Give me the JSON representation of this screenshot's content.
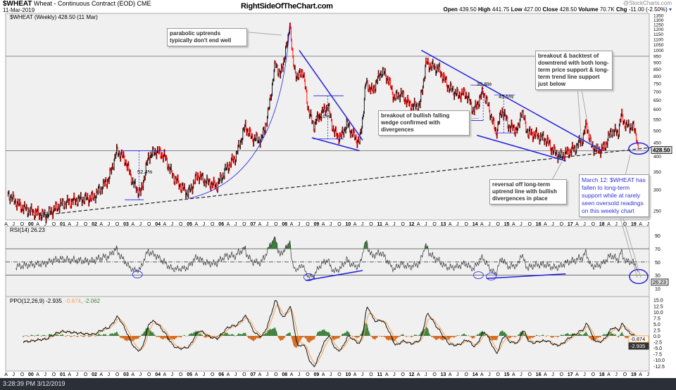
{
  "header": {
    "symbol": "$WHEAT",
    "name": "Wheat - Continuous Contract (EOD) CME",
    "date": "11-Mar-2019",
    "site": "RightSideOfTheChart.com",
    "credit": "@StockCharts.com",
    "open_label": "Open",
    "open": "439.50",
    "high_label": "High",
    "high": "441.75",
    "low_label": "Low",
    "low": "427.00",
    "close_label": "Close",
    "close": "428.50",
    "volume_label": "Volume",
    "volume": "70.7K",
    "chg_label": "Chg",
    "chg": "-11.00 (-2.50%)"
  },
  "status_bar": {
    "timestamp": "3:28:39 PM 3/12/2019"
  },
  "colors": {
    "up": "#000000",
    "down": "#ff0000",
    "annotation": "#2020e0",
    "signal": "#f5a04a",
    "hist_pos": "#3d7f3d",
    "hist_neg": "#d2691e",
    "panel_bg": "#f0f0f0",
    "status_bg": "#2b3038"
  },
  "annotations": {
    "parabolic": "parabolic uptrends typically don't end well",
    "wedge": "breakout of bullish falling wedge confirmed with divergences",
    "backtest": "breakout & backtest of downtrend with both long-term price support & long-term trend line support just below",
    "reversal": "reversal off long-term uptrend line with bullish divergences in place",
    "march12": "March 12: $WHEAT has fallen to long-term support while at rarely seen oversold readings on this weekly chart",
    "pct": [
      "52.4%",
      "45.0%",
      "35.8%",
      "45.5%"
    ]
  },
  "chart_data": [
    {
      "type": "line",
      "panel": "price",
      "title": "$WHEAT (Weekly) 428.50 (11 Mar)",
      "scale": "log",
      "ylim": [
        240,
        1360
      ],
      "yticks": [
        1350,
        1300,
        1250,
        1200,
        1150,
        1100,
        1050,
        1000,
        950,
        900,
        850,
        800,
        750,
        700,
        650,
        600,
        550,
        500,
        450,
        400,
        350,
        300,
        250
      ],
      "last_value_tag": "428.50",
      "horizontal_lines": [
        950,
        420
      ],
      "x": [
        1999.3,
        1999.7,
        2000.0,
        2000.5,
        2001.0,
        2001.5,
        2002.0,
        2002.5,
        2002.75,
        2003.0,
        2003.3,
        2003.5,
        2003.75,
        2004.0,
        2004.25,
        2004.5,
        2004.75,
        2005.0,
        2005.3,
        2005.6,
        2005.9,
        2006.2,
        2006.5,
        2006.8,
        2007.0,
        2007.3,
        2007.5,
        2007.75,
        2007.9,
        2008.15,
        2008.2,
        2008.3,
        2008.45,
        2008.6,
        2008.8,
        2008.95,
        2009.1,
        2009.4,
        2009.6,
        2009.8,
        2010.0,
        2010.2,
        2010.4,
        2010.5,
        2010.6,
        2010.8,
        2011.1,
        2011.3,
        2011.5,
        2011.7,
        2012.0,
        2012.3,
        2012.5,
        2012.6,
        2012.9,
        2013.2,
        2013.5,
        2013.75,
        2014.0,
        2014.3,
        2014.45,
        2014.7,
        2014.9,
        2015.1,
        2015.4,
        2015.5,
        2015.7,
        2016.0,
        2016.3,
        2016.5,
        2016.7,
        2016.9,
        2017.2,
        2017.45,
        2017.55,
        2017.7,
        2017.9,
        2018.1,
        2018.35,
        2018.55,
        2018.65,
        2018.8,
        2019.0,
        2019.1,
        2019.19
      ],
      "values": [
        290,
        260,
        250,
        240,
        265,
        275,
        280,
        330,
        420,
        390,
        310,
        290,
        400,
        420,
        400,
        340,
        310,
        290,
        340,
        320,
        310,
        360,
        400,
        520,
        470,
        460,
        560,
        900,
        800,
        1100,
        1300,
        900,
        780,
        850,
        590,
        520,
        560,
        620,
        490,
        470,
        530,
        480,
        450,
        560,
        760,
        700,
        840,
        780,
        660,
        690,
        620,
        620,
        900,
        880,
        850,
        730,
        680,
        690,
        590,
        700,
        620,
        490,
        600,
        520,
        500,
        600,
        490,
        480,
        460,
        420,
        400,
        410,
        430,
        470,
        530,
        440,
        420,
        430,
        500,
        490,
        570,
        520,
        520,
        490,
        428.5
      ]
    },
    {
      "type": "line",
      "panel": "rsi",
      "title": "RSI(14) 26.23",
      "ylim": [
        0,
        100
      ],
      "yticks": [
        90,
        70,
        50,
        30,
        10
      ],
      "reference_lines": [
        70,
        50,
        30
      ],
      "last_value_tag": "26.23"
    },
    {
      "type": "line",
      "panel": "ppo",
      "title": "PPO(12,26,9) -2.935",
      "signal_label": ", -0.874",
      "hist_label": ", -2.062",
      "ylim": [
        -14,
        16.5
      ],
      "yticks": [
        15.0,
        12.5,
        10.0,
        7.5,
        5.0,
        2.5,
        0.0,
        -2.5,
        -5.0,
        -7.5,
        -10.0,
        -12.5
      ],
      "signal_tag": "-0.874",
      "ppo_tag": "-2.935"
    }
  ],
  "x_axis_labels": [
    "A",
    "J",
    "O",
    "00",
    "A",
    "J",
    "O",
    "01",
    "A",
    "J",
    "O",
    "02",
    "A",
    "J",
    "O",
    "03",
    "A",
    "J",
    "O",
    "04",
    "A",
    "J",
    "O",
    "05",
    "A",
    "J",
    "O",
    "06",
    "A",
    "J",
    "O",
    "07",
    "A",
    "J",
    "O",
    "08",
    "A",
    "J",
    "O",
    "09",
    "A",
    "J",
    "O",
    "10",
    "A",
    "J",
    "O",
    "11",
    "A",
    "J",
    "O",
    "12",
    "A",
    "J",
    "O",
    "13",
    "A",
    "J",
    "O",
    "14",
    "A",
    "J",
    "O",
    "15",
    "A",
    "J",
    "O",
    "16",
    "A",
    "J",
    "O",
    "17",
    "A",
    "J",
    "O",
    "18",
    "A",
    "J",
    "O",
    "19",
    "A",
    "J"
  ]
}
